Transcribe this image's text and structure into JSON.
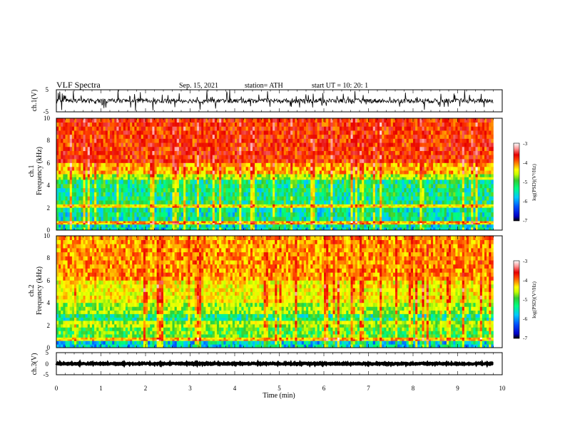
{
  "header": {
    "title": "VLF  Spectra",
    "date": "Sep. 15, 2021",
    "station": "station= ATH",
    "start": "start  UT  =    10: 20: 1"
  },
  "chart_data": [
    {
      "type": "line",
      "name": "ch1-waveform",
      "ylabel": "ch.1(V)",
      "xlim": [
        0,
        10
      ],
      "ylim": [
        -5,
        5
      ],
      "yticks": [
        "5",
        "-5"
      ],
      "trace": {
        "baseline": 0,
        "amplitude_typical": 1.0,
        "spikes": true,
        "x_end": 9.8
      }
    },
    {
      "type": "heatmap",
      "name": "ch1-spectrogram",
      "ylabel": "ch.1\nFrequency  (kHz)",
      "xlim": [
        0,
        10
      ],
      "ylim": [
        0,
        10
      ],
      "yticks": [
        "0",
        "2",
        "4",
        "6",
        "8",
        "10"
      ],
      "zlabel": "log(PSD)(V²/Hz)",
      "zlim": [
        -7,
        -3
      ],
      "zticks": [
        "-7",
        "-6",
        "-5",
        "-4",
        "-3"
      ],
      "colormap": [
        "#000000",
        "#0000c8",
        "#0050ff",
        "#00c8ff",
        "#00ff80",
        "#32cd32",
        "#c8ff00",
        "#ffff00",
        "#ffa000",
        "#ff3c00",
        "#e60000",
        "#ff9696",
        "#ffffff"
      ],
      "bands_khz": [
        {
          "fmin": 6.0,
          "fmax": 10.0,
          "log_psd": -3.9
        },
        {
          "fmin": 5.0,
          "fmax": 6.0,
          "log_psd": -4.4
        },
        {
          "fmin": 4.5,
          "fmax": 5.0,
          "log_psd": -5.0
        },
        {
          "fmin": 2.3,
          "fmax": 4.5,
          "log_psd": -5.6
        },
        {
          "fmin": 2.0,
          "fmax": 2.3,
          "log_psd": -4.7
        },
        {
          "fmin": 0.8,
          "fmax": 2.0,
          "log_psd": -5.7
        },
        {
          "fmin": 0.5,
          "fmax": 0.8,
          "log_psd": -4.4
        },
        {
          "fmin": 0.0,
          "fmax": 0.5,
          "log_psd": -5.8
        }
      ]
    },
    {
      "type": "heatmap",
      "name": "ch2-spectrogram",
      "ylabel": "ch.2\nFrequency  (kHz)",
      "xlim": [
        0,
        10
      ],
      "ylim": [
        0,
        10
      ],
      "yticks": [
        "0",
        "2",
        "4",
        "6",
        "8",
        "10"
      ],
      "zlabel": "log(PSD)(V²/Hz)",
      "zlim": [
        -7,
        -3
      ],
      "zticks": [
        "-7",
        "-6",
        "-5",
        "-4",
        "-3"
      ],
      "bands_khz": [
        {
          "fmin": 6.0,
          "fmax": 10.0,
          "log_psd": -4.3
        },
        {
          "fmin": 4.0,
          "fmax": 6.0,
          "log_psd": -4.7
        },
        {
          "fmin": 3.0,
          "fmax": 4.0,
          "log_psd": -5.1
        },
        {
          "fmin": 2.4,
          "fmax": 3.0,
          "log_psd": -5.6
        },
        {
          "fmin": 1.8,
          "fmax": 2.4,
          "log_psd": -5.0
        },
        {
          "fmin": 0.9,
          "fmax": 1.8,
          "log_psd": -5.3
        },
        {
          "fmin": 0.6,
          "fmax": 0.9,
          "log_psd": -4.5
        },
        {
          "fmin": 0.0,
          "fmax": 0.6,
          "log_psd": -5.9
        }
      ]
    },
    {
      "type": "line",
      "name": "ch3-waveform",
      "ylabel": "ch.3(V)",
      "xlim": [
        0,
        10
      ],
      "ylim": [
        -5,
        5
      ],
      "yticks": [
        "5",
        "0",
        "-5"
      ],
      "trace": {
        "baseline": 0,
        "amplitude_typical": 0.3,
        "spikes": false,
        "x_end": 9.8
      }
    }
  ],
  "x_axis": {
    "label": "Time  (min)",
    "ticks": [
      "0",
      "1",
      "2",
      "3",
      "4",
      "5",
      "6",
      "7",
      "8",
      "9",
      "10"
    ]
  }
}
